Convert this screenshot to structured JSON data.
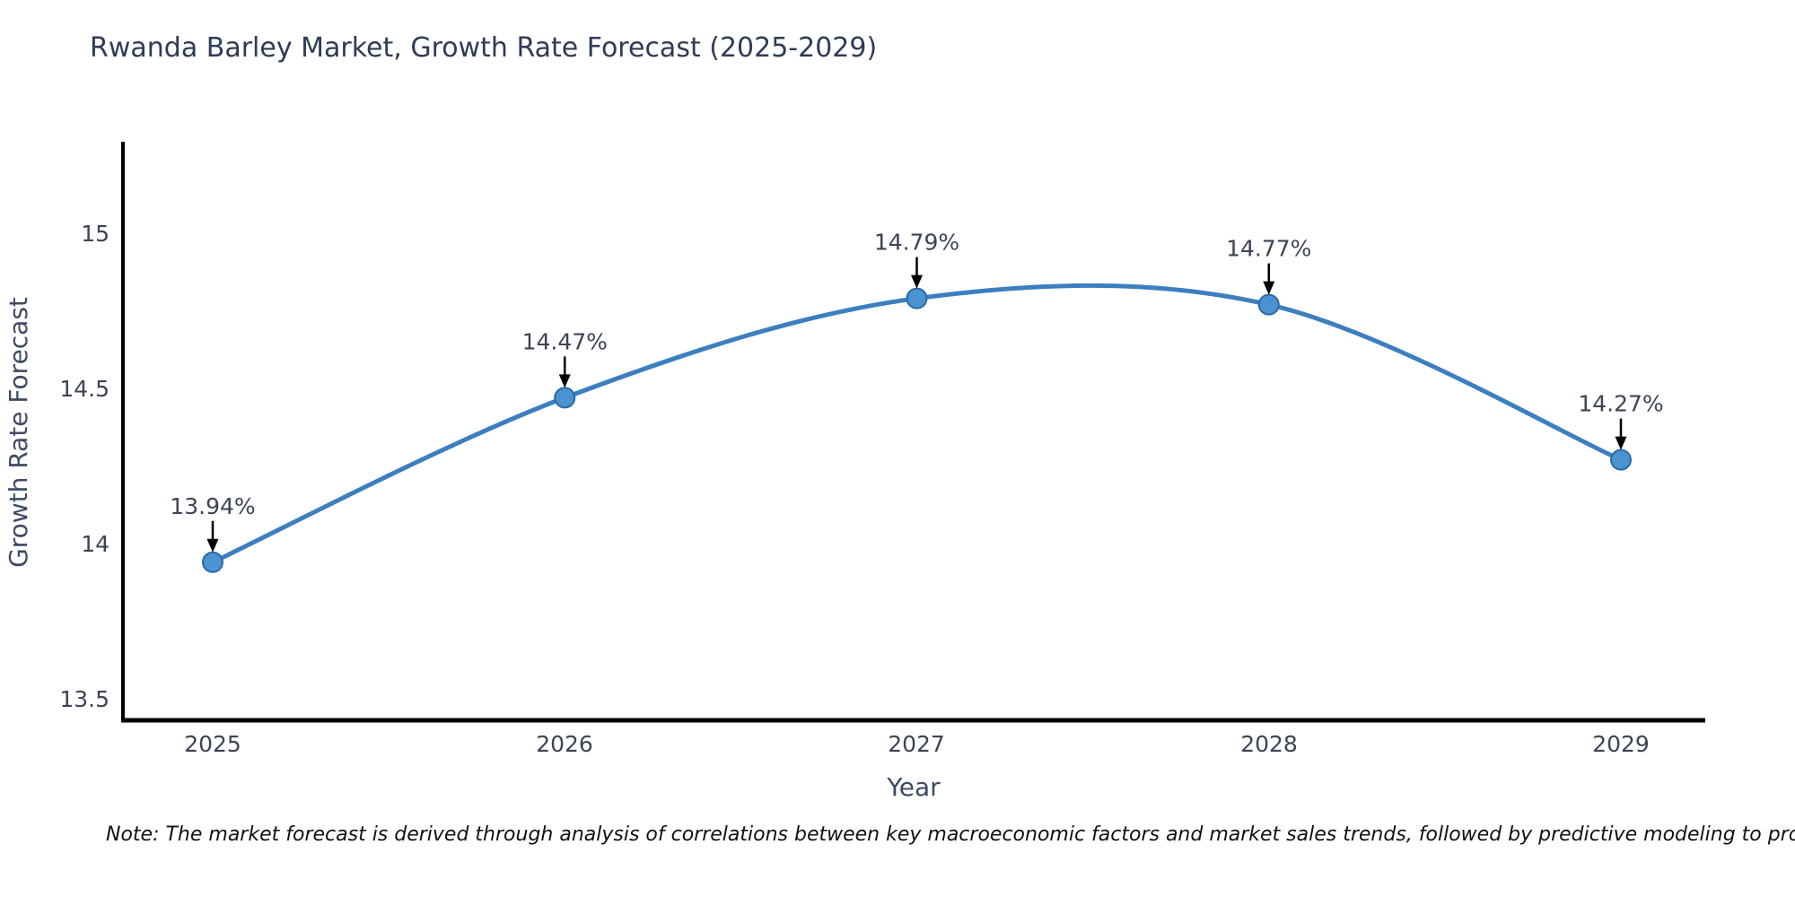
{
  "title": "Rwanda Barley Market, Growth Rate Forecast (2025-2029)",
  "note": "Note: The market forecast is derived through analysis of correlations between key macroeconomic factors and market sales trends, followed by predictive modeling to project future sal",
  "chart_data": {
    "type": "line",
    "title": "Rwanda Barley Market, Growth Rate Forecast (2025-2029)",
    "xlabel": "Year",
    "ylabel": "Growth Rate Forecast",
    "x": [
      2025,
      2026,
      2027,
      2028,
      2029
    ],
    "values": [
      13.94,
      14.47,
      14.79,
      14.77,
      14.27
    ],
    "point_labels": [
      "13.94%",
      "14.47%",
      "14.79%",
      "14.77%",
      "14.27%"
    ],
    "xtick_labels": [
      "2025",
      "2026",
      "2027",
      "2028",
      "2029"
    ],
    "ytick_values": [
      13.5,
      14,
      14.5,
      15
    ],
    "ytick_labels": [
      "13.5",
      "14",
      "14.5",
      "15"
    ],
    "ylim": [
      13.43,
      15.3
    ],
    "grid": false,
    "legend": null,
    "line_smooth": true,
    "annotation_style": "downward-arrow",
    "colors": {
      "line": "#3c7fc0",
      "marker_fill": "#4a93d0",
      "marker_edge": "#2a6aa5",
      "arrow": "#000000",
      "title_text": "#2e3c55",
      "axis_text": "#3c4454",
      "spine": "#000000"
    }
  }
}
